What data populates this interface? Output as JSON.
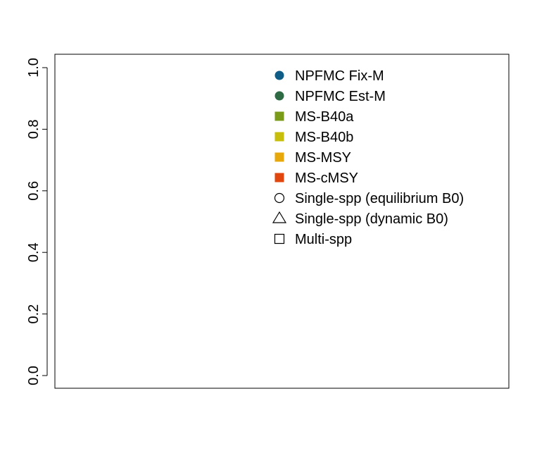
{
  "chart_data": {
    "type": "scatter",
    "title": "",
    "xlabel": "",
    "ylabel": "",
    "ylim": [
      0,
      1
    ],
    "yticks": [
      "0.0",
      "0.2",
      "0.4",
      "0.6",
      "0.8",
      "1.0"
    ],
    "grid": false,
    "legend_position": "top-right",
    "legend": [
      {
        "label": "NPFMC Fix-M",
        "marker": "filled-circle",
        "color": "#0F5D86"
      },
      {
        "label": "NPFMC Est-M",
        "marker": "filled-circle",
        "color": "#2E6B45"
      },
      {
        "label": "MS-B40a",
        "marker": "filled-square",
        "color": "#7A9A1A"
      },
      {
        "label": "MS-B40b",
        "marker": "filled-square",
        "color": "#C6BE0A"
      },
      {
        "label": "MS-MSY",
        "marker": "filled-square",
        "color": "#E6A80A"
      },
      {
        "label": "MS-cMSY",
        "marker": "filled-square",
        "color": "#E2460F"
      },
      {
        "label": "Single-spp (equilibrium B0)",
        "marker": "open-circle",
        "color": "#000000"
      },
      {
        "label": "Single-spp (dynamic B0)",
        "marker": "open-triangle",
        "color": "#000000"
      },
      {
        "label": "Multi-spp",
        "marker": "open-square",
        "color": "#000000"
      }
    ],
    "series": []
  }
}
